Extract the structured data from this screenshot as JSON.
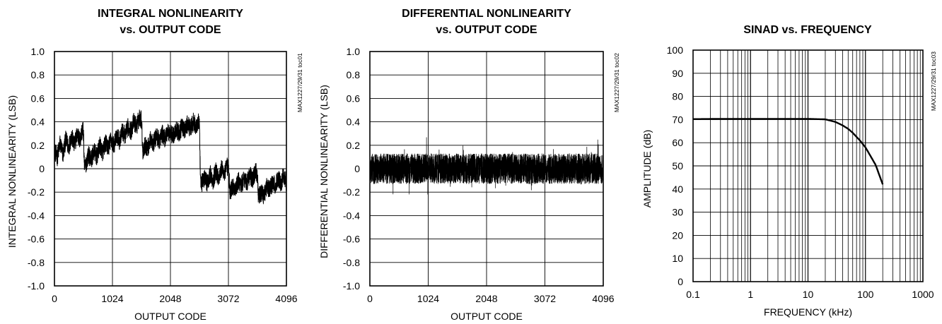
{
  "charts": [
    {
      "title_line1": "INTEGRAL NONLINEARITY",
      "title_line2": "vs. OUTPUT CODE",
      "side_label": "MAX1227/29/31 toc01",
      "xlabel": "OUTPUT CODE",
      "ylabel": "INTEGRAL NONLINEARITY (LSB)",
      "x_ticks": [
        "0",
        "1024",
        "2048",
        "3072",
        "4096"
      ],
      "y_ticks": [
        "1.0",
        "0.8",
        "0.6",
        "0.4",
        "0.2",
        "0",
        "-0.2",
        "-0.4",
        "-0.6",
        "-0.8",
        "-1.0"
      ]
    },
    {
      "title_line1": "DIFFERENTIAL NONLINEARITY",
      "title_line2": "vs. OUTPUT CODE",
      "side_label": "MAX1227/29/31 toc02",
      "xlabel": "OUTPUT CODE",
      "ylabel": "DIFFERENTIAL NONLINEARITY (LSB)",
      "x_ticks": [
        "0",
        "1024",
        "2048",
        "3072",
        "4096"
      ],
      "y_ticks": [
        "1.0",
        "0.8",
        "0.6",
        "0.4",
        "0.2",
        "0",
        "-0.2",
        "-0.4",
        "-0.6",
        "-0.8",
        "-1.0"
      ]
    },
    {
      "title_line1": "SINAD vs. FREQUENCY",
      "title_line2": "",
      "side_label": "MAX1227/29/31 toc03",
      "xlabel": "FREQUENCY (kHz)",
      "ylabel": "AMPLITUDE (dB)",
      "x_ticks": [
        "0.1",
        "1",
        "10",
        "100",
        "1000"
      ],
      "y_ticks": [
        "100",
        "90",
        "80",
        "70",
        "60",
        "50",
        "40",
        "30",
        "20",
        "10",
        "0"
      ]
    }
  ],
  "chart_data": [
    {
      "type": "line",
      "title": "INTEGRAL NONLINEARITY vs. OUTPUT CODE",
      "xlabel": "OUTPUT CODE",
      "ylabel": "INTEGRAL NONLINEARITY (LSB)",
      "xlim": [
        0,
        4096
      ],
      "ylim": [
        -1.0,
        1.0
      ],
      "x_ticks": [
        0,
        1024,
        2048,
        3072,
        4096
      ],
      "y_ticks": [
        1.0,
        0.8,
        0.6,
        0.4,
        0.2,
        0,
        -0.2,
        -0.4,
        -0.6,
        -0.8,
        -1.0
      ],
      "grid": true,
      "series": [
        {
          "x": [
            0,
            50,
            100,
            150,
            200,
            250,
            300,
            350,
            400,
            450,
            500,
            512,
            530,
            560,
            600,
            650,
            700,
            750,
            800,
            850,
            900,
            950,
            1000,
            1024,
            1050,
            1100,
            1150,
            1200,
            1250,
            1300,
            1350,
            1400,
            1450,
            1500,
            1536,
            1560,
            1600,
            1650,
            1700,
            1750,
            1800,
            1850,
            1900,
            1950,
            2000,
            2048,
            2100,
            2150,
            2200,
            2250,
            2300,
            2350,
            2400,
            2450,
            2500,
            2550,
            2560,
            2580,
            2600,
            2650,
            2700,
            2750,
            2800,
            2850,
            2900,
            2950,
            3000,
            3050,
            3072,
            3100,
            3150,
            3200,
            3250,
            3300,
            3350,
            3400,
            3450,
            3500,
            3550,
            3584,
            3600,
            3650,
            3700,
            3750,
            3800,
            3850,
            3900,
            3950,
            4000,
            4050,
            4096
          ],
          "y": [
            0.15,
            0.1,
            0.22,
            0.12,
            0.25,
            0.18,
            0.28,
            0.2,
            0.3,
            0.24,
            0.35,
            0.3,
            0.0,
            0.05,
            0.12,
            0.08,
            0.15,
            0.1,
            0.2,
            0.14,
            0.22,
            0.18,
            0.25,
            0.22,
            0.2,
            0.28,
            0.24,
            0.32,
            0.28,
            0.36,
            0.32,
            0.4,
            0.36,
            0.44,
            0.42,
            0.15,
            0.2,
            0.18,
            0.25,
            0.22,
            0.28,
            0.24,
            0.3,
            0.26,
            0.32,
            0.3,
            0.28,
            0.34,
            0.3,
            0.36,
            0.32,
            0.38,
            0.34,
            0.4,
            0.36,
            0.4,
            0.35,
            -0.15,
            -0.12,
            -0.08,
            -0.12,
            -0.05,
            -0.1,
            -0.02,
            -0.08,
            0.0,
            -0.04,
            0.02,
            0.0,
            -0.2,
            -0.15,
            -0.18,
            -0.1,
            -0.14,
            -0.08,
            -0.12,
            -0.05,
            -0.1,
            -0.02,
            -0.05,
            -0.25,
            -0.2,
            -0.22,
            -0.15,
            -0.18,
            -0.12,
            -0.15,
            -0.08,
            -0.12,
            -0.05,
            -0.12
          ]
        }
      ]
    },
    {
      "type": "line",
      "title": "DIFFERENTIAL NONLINEARITY vs. OUTPUT CODE",
      "xlabel": "OUTPUT CODE",
      "ylabel": "DIFFERENTIAL NONLINEARITY (LSB)",
      "xlim": [
        0,
        4096
      ],
      "ylim": [
        -1.0,
        1.0
      ],
      "x_ticks": [
        0,
        1024,
        2048,
        3072,
        4096
      ],
      "y_ticks": [
        1.0,
        0.8,
        0.6,
        0.4,
        0.2,
        0,
        -0.2,
        -0.4,
        -0.6,
        -0.8,
        -1.0
      ],
      "grid": true,
      "series": [
        {
          "x": [
            0,
            100,
            200,
            300,
            400,
            500,
            600,
            700,
            800,
            900,
            1000,
            1100,
            1200,
            1300,
            1400,
            1500,
            1600,
            1700,
            1800,
            1900,
            2000,
            2100,
            2200,
            2300,
            2400,
            2500,
            2600,
            2700,
            2800,
            2900,
            3000,
            3100,
            3200,
            3300,
            3400,
            3500,
            3600,
            3700,
            3800,
            3900,
            4000,
            4096
          ],
          "y": [
            0.0,
            0.2,
            -0.22,
            0.18,
            -0.25,
            0.22,
            -0.2,
            0.26,
            -0.18,
            0.2,
            -0.3,
            0.17,
            -0.22,
            0.16,
            -0.2,
            0.18,
            -0.38,
            0.15,
            -0.2,
            0.16,
            -0.25,
            0.14,
            -0.18,
            0.15,
            -0.2,
            0.16,
            -0.22,
            0.14,
            -0.35,
            0.15,
            -0.2,
            0.18,
            -0.24,
            0.14,
            -0.2,
            0.16,
            -0.28,
            0.15,
            -0.22,
            0.2,
            -0.25,
            0.22
          ]
        }
      ]
    },
    {
      "type": "line",
      "title": "SINAD vs. FREQUENCY",
      "xlabel": "FREQUENCY (kHz)",
      "ylabel": "AMPLITUDE (dB)",
      "xscale": "log",
      "xlim": [
        0.1,
        1000
      ],
      "ylim": [
        0,
        100
      ],
      "x_ticks": [
        0.1,
        1,
        10,
        100,
        1000
      ],
      "y_ticks": [
        100,
        90,
        80,
        70,
        60,
        50,
        40,
        30,
        20,
        10,
        0
      ],
      "grid": true,
      "series": [
        {
          "x": [
            0.1,
            0.3,
            1,
            3,
            10,
            20,
            30,
            40,
            50,
            60,
            80,
            100,
            150,
            200
          ],
          "y": [
            70.2,
            70.3,
            70.3,
            70.3,
            70.3,
            70.1,
            69.0,
            67.5,
            66.0,
            64.3,
            61.0,
            58.0,
            50.5,
            42.0
          ]
        }
      ]
    }
  ]
}
